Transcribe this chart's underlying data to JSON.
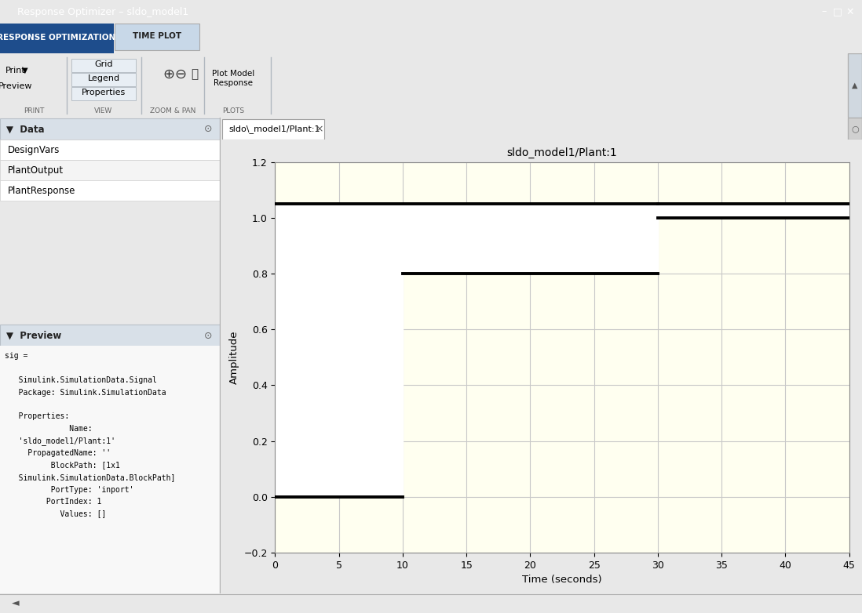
{
  "title": "sldo_model1/Plant:1",
  "xlabel": "Time (seconds)",
  "ylabel": "Amplitude",
  "xlim": [
    0,
    45
  ],
  "ylim": [
    -0.2,
    1.2
  ],
  "xticks": [
    0,
    5,
    10,
    15,
    20,
    25,
    30,
    35,
    40,
    45
  ],
  "yticks": [
    -0.2,
    0,
    0.2,
    0.4,
    0.6,
    0.8,
    1.0,
    1.2
  ],
  "yellow_bg": "#fffff0",
  "white_region": "#ffffff",
  "bound_color": "#000000",
  "grid_color": "#c8c8c8",
  "window_title": "Response Optimizer - sldo_model1",
  "tab1_label": "RESPONSE OPTIMIZATION",
  "tab2_label": "TIME PLOT",
  "data_items": [
    "DesignVars",
    "PlantOutput",
    "PlantResponse"
  ],
  "preview_lines": [
    "sig =",
    "",
    "   Simulink.SimulationData.Signal",
    "   Package: Simulink.SimulationData",
    "",
    "   Properties:",
    "              Name:",
    "   'sldo_model1/Plant:1'",
    "     PropagatedName: ''",
    "          BlockPath: [1x1",
    "   Simulink.SimulationData.BlockPath]",
    "          PortType: 'inport'",
    "         PortIndex: 1",
    "            Values: []"
  ],
  "fig_bg": "#e8e8e8",
  "titlebar_bg": "#1c3a5e",
  "ribbon_tab_bg": "#1e4d8c",
  "ribbon_bg": "#d6dfe8",
  "left_panel_bg": "#f0f0f0",
  "section_header_bg": "#d8e0e8",
  "data_item_bg": "#ffffff",
  "plot_area_bg": "#f0f0f0",
  "tab_bar_bg": "#dcdcdc",
  "active_tab_bg": "#ffffff"
}
